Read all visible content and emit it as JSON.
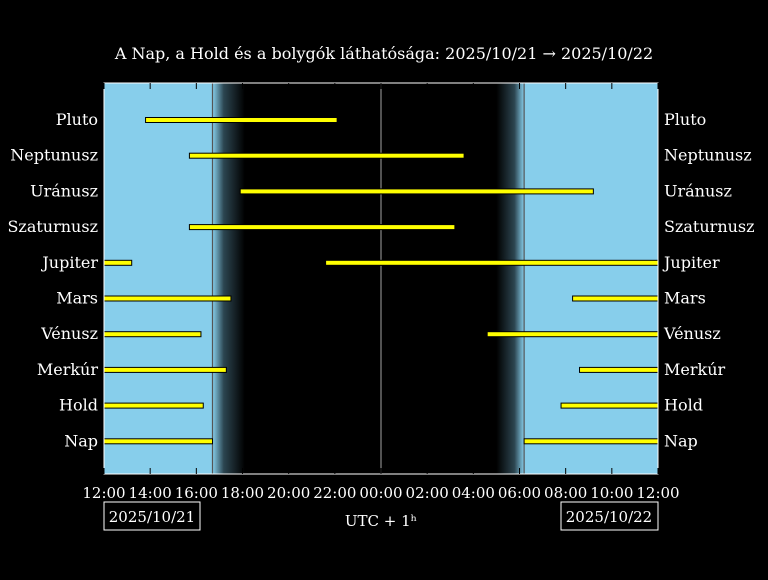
{
  "chart_data": {
    "type": "bar",
    "title": "A Nap, a Hold és a bolygók láthatósága: 2025/10/21 → 2025/10/22",
    "xlabel": "UTC + 1ʰ",
    "x_ticks": [
      "12:00",
      "14:00",
      "16:00",
      "18:00",
      "20:00",
      "22:00",
      "00:00",
      "02:00",
      "04:00",
      "06:00",
      "08:00",
      "10:00",
      "12:00"
    ],
    "xlim_hours": [
      12,
      36
    ],
    "date_left": "2025/10/21",
    "date_right": "2025/10/22",
    "daylight": {
      "sunset": 16.7,
      "dark_start": 18.1,
      "dark_end": 29.0,
      "sunrise": 30.2
    },
    "vertical_lines": [
      16.7,
      24.0,
      30.2
    ],
    "categories": [
      "Pluto",
      "Neptunusz",
      "Uránusz",
      "Szaturnusz",
      "Jupiter",
      "Mars",
      "Vénusz",
      "Merkúr",
      "Hold",
      "Nap"
    ],
    "series": [
      {
        "object": "Pluto",
        "intervals": [
          [
            13.8,
            22.1
          ]
        ]
      },
      {
        "object": "Neptunusz",
        "intervals": [
          [
            15.7,
            27.6
          ]
        ]
      },
      {
        "object": "Uránusz",
        "intervals": [
          [
            17.9,
            33.2
          ]
        ]
      },
      {
        "object": "Szaturnusz",
        "intervals": [
          [
            15.7,
            27.2
          ]
        ]
      },
      {
        "object": "Jupiter",
        "intervals": [
          [
            12.0,
            13.2
          ],
          [
            21.6,
            36.0
          ]
        ]
      },
      {
        "object": "Mars",
        "intervals": [
          [
            12.0,
            17.5
          ],
          [
            32.3,
            36.0
          ]
        ]
      },
      {
        "object": "Vénusz",
        "intervals": [
          [
            12.0,
            16.2
          ],
          [
            28.6,
            36.0
          ]
        ]
      },
      {
        "object": "Merkúr",
        "intervals": [
          [
            12.0,
            17.3
          ],
          [
            32.6,
            36.0
          ]
        ]
      },
      {
        "object": "Hold",
        "intervals": [
          [
            12.0,
            16.3
          ],
          [
            31.8,
            36.0
          ]
        ]
      },
      {
        "object": "Nap",
        "intervals": [
          [
            12.0,
            16.7
          ],
          [
            30.2,
            36.0
          ]
        ]
      }
    ],
    "colors": {
      "day": "#87ceeb",
      "night": "#000000",
      "bar_fill": "#ffff00",
      "bar_edge": "#000000",
      "frame": "#ffffff",
      "line": "#555555"
    }
  }
}
